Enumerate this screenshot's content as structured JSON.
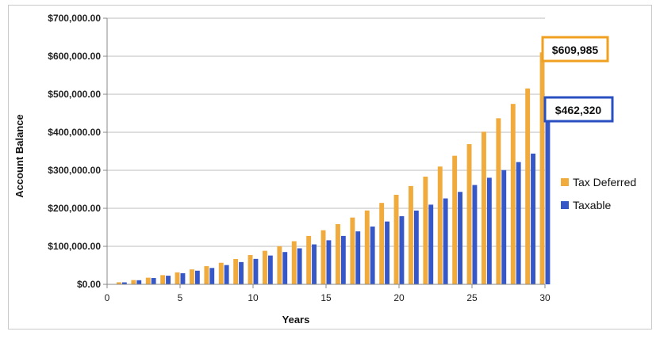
{
  "chart_data": {
    "type": "bar",
    "title": "",
    "xlabel": "Years",
    "ylabel": "Account Balance",
    "x": [
      1,
      2,
      3,
      4,
      5,
      6,
      7,
      8,
      9,
      10,
      11,
      12,
      13,
      14,
      15,
      16,
      17,
      18,
      19,
      20,
      21,
      22,
      23,
      24,
      25,
      26,
      27,
      28,
      29,
      30
    ],
    "xticks": [
      0,
      5,
      10,
      15,
      20,
      25,
      30
    ],
    "xlim": [
      0,
      30
    ],
    "ylim": [
      0,
      700000
    ],
    "yticks": [
      {
        "value": 0,
        "label": "$0.00"
      },
      {
        "value": 100000,
        "label": "$100,000.00"
      },
      {
        "value": 200000,
        "label": "$200,000.00"
      },
      {
        "value": 300000,
        "label": "$300,000.00"
      },
      {
        "value": 400000,
        "label": "$400,000.00"
      },
      {
        "value": 500000,
        "label": "$500,000.00"
      },
      {
        "value": 600000,
        "label": "$600,000.00"
      },
      {
        "value": 700000,
        "label": "$700,000.00"
      }
    ],
    "grid": true,
    "legend_position": "right",
    "series": [
      {
        "name": "Tax Deferred",
        "color": "#f0ab3c",
        "values": [
          5400,
          11200,
          17500,
          24200,
          31500,
          39300,
          47800,
          56800,
          66600,
          77000,
          88300,
          100300,
          113400,
          127300,
          142300,
          158400,
          175700,
          194300,
          214200,
          235600,
          258600,
          283300,
          309800,
          338200,
          368800,
          401500,
          436800,
          474600,
          515300,
          609985
        ]
      },
      {
        "name": "Taxable",
        "color": "#3557c8",
        "values": [
          5200,
          10800,
          16600,
          22700,
          29200,
          35900,
          43100,
          50700,
          58600,
          67000,
          75800,
          85000,
          94800,
          105100,
          115900,
          127300,
          139300,
          152000,
          165300,
          179300,
          194100,
          209600,
          226000,
          243200,
          261300,
          280400,
          300500,
          321600,
          343900,
          462320
        ]
      }
    ],
    "callouts": [
      {
        "label": "$609,985",
        "series": "Tax Deferred",
        "border_color": "#f0a020"
      },
      {
        "label": "$462,320",
        "series": "Taxable",
        "border_color": "#2a4fc0"
      }
    ]
  }
}
